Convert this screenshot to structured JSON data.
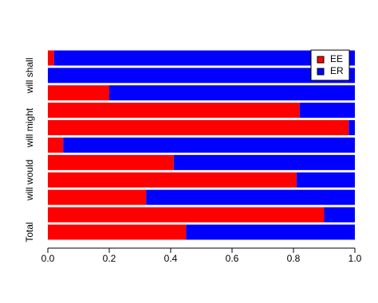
{
  "chart_data": {
    "type": "stacked-barh",
    "categories": [
      null,
      "will shall",
      null,
      null,
      "will might",
      null,
      null,
      "will would",
      null,
      null,
      "Total"
    ],
    "series": [
      {
        "name": "EE",
        "color": "#ff0000",
        "values": [
          0.02,
          0,
          0.2,
          0.82,
          0.98,
          0.05,
          0.41,
          0.81,
          0.32,
          0.9,
          0.45
        ]
      },
      {
        "name": "ER",
        "color": "#0000ff",
        "values": [
          0.98,
          1,
          0.8,
          0.18,
          0.02,
          0.95,
          0.59,
          0.19,
          0.68,
          0.1,
          0.55
        ]
      }
    ],
    "xlim": [
      0,
      1
    ],
    "xticks": [
      {
        "value": 0,
        "label": "0.0"
      },
      0.2,
      0.4,
      0.6,
      0.8,
      {
        "value": 1,
        "label": "1.0"
      }
    ],
    "legend": "top-right"
  }
}
